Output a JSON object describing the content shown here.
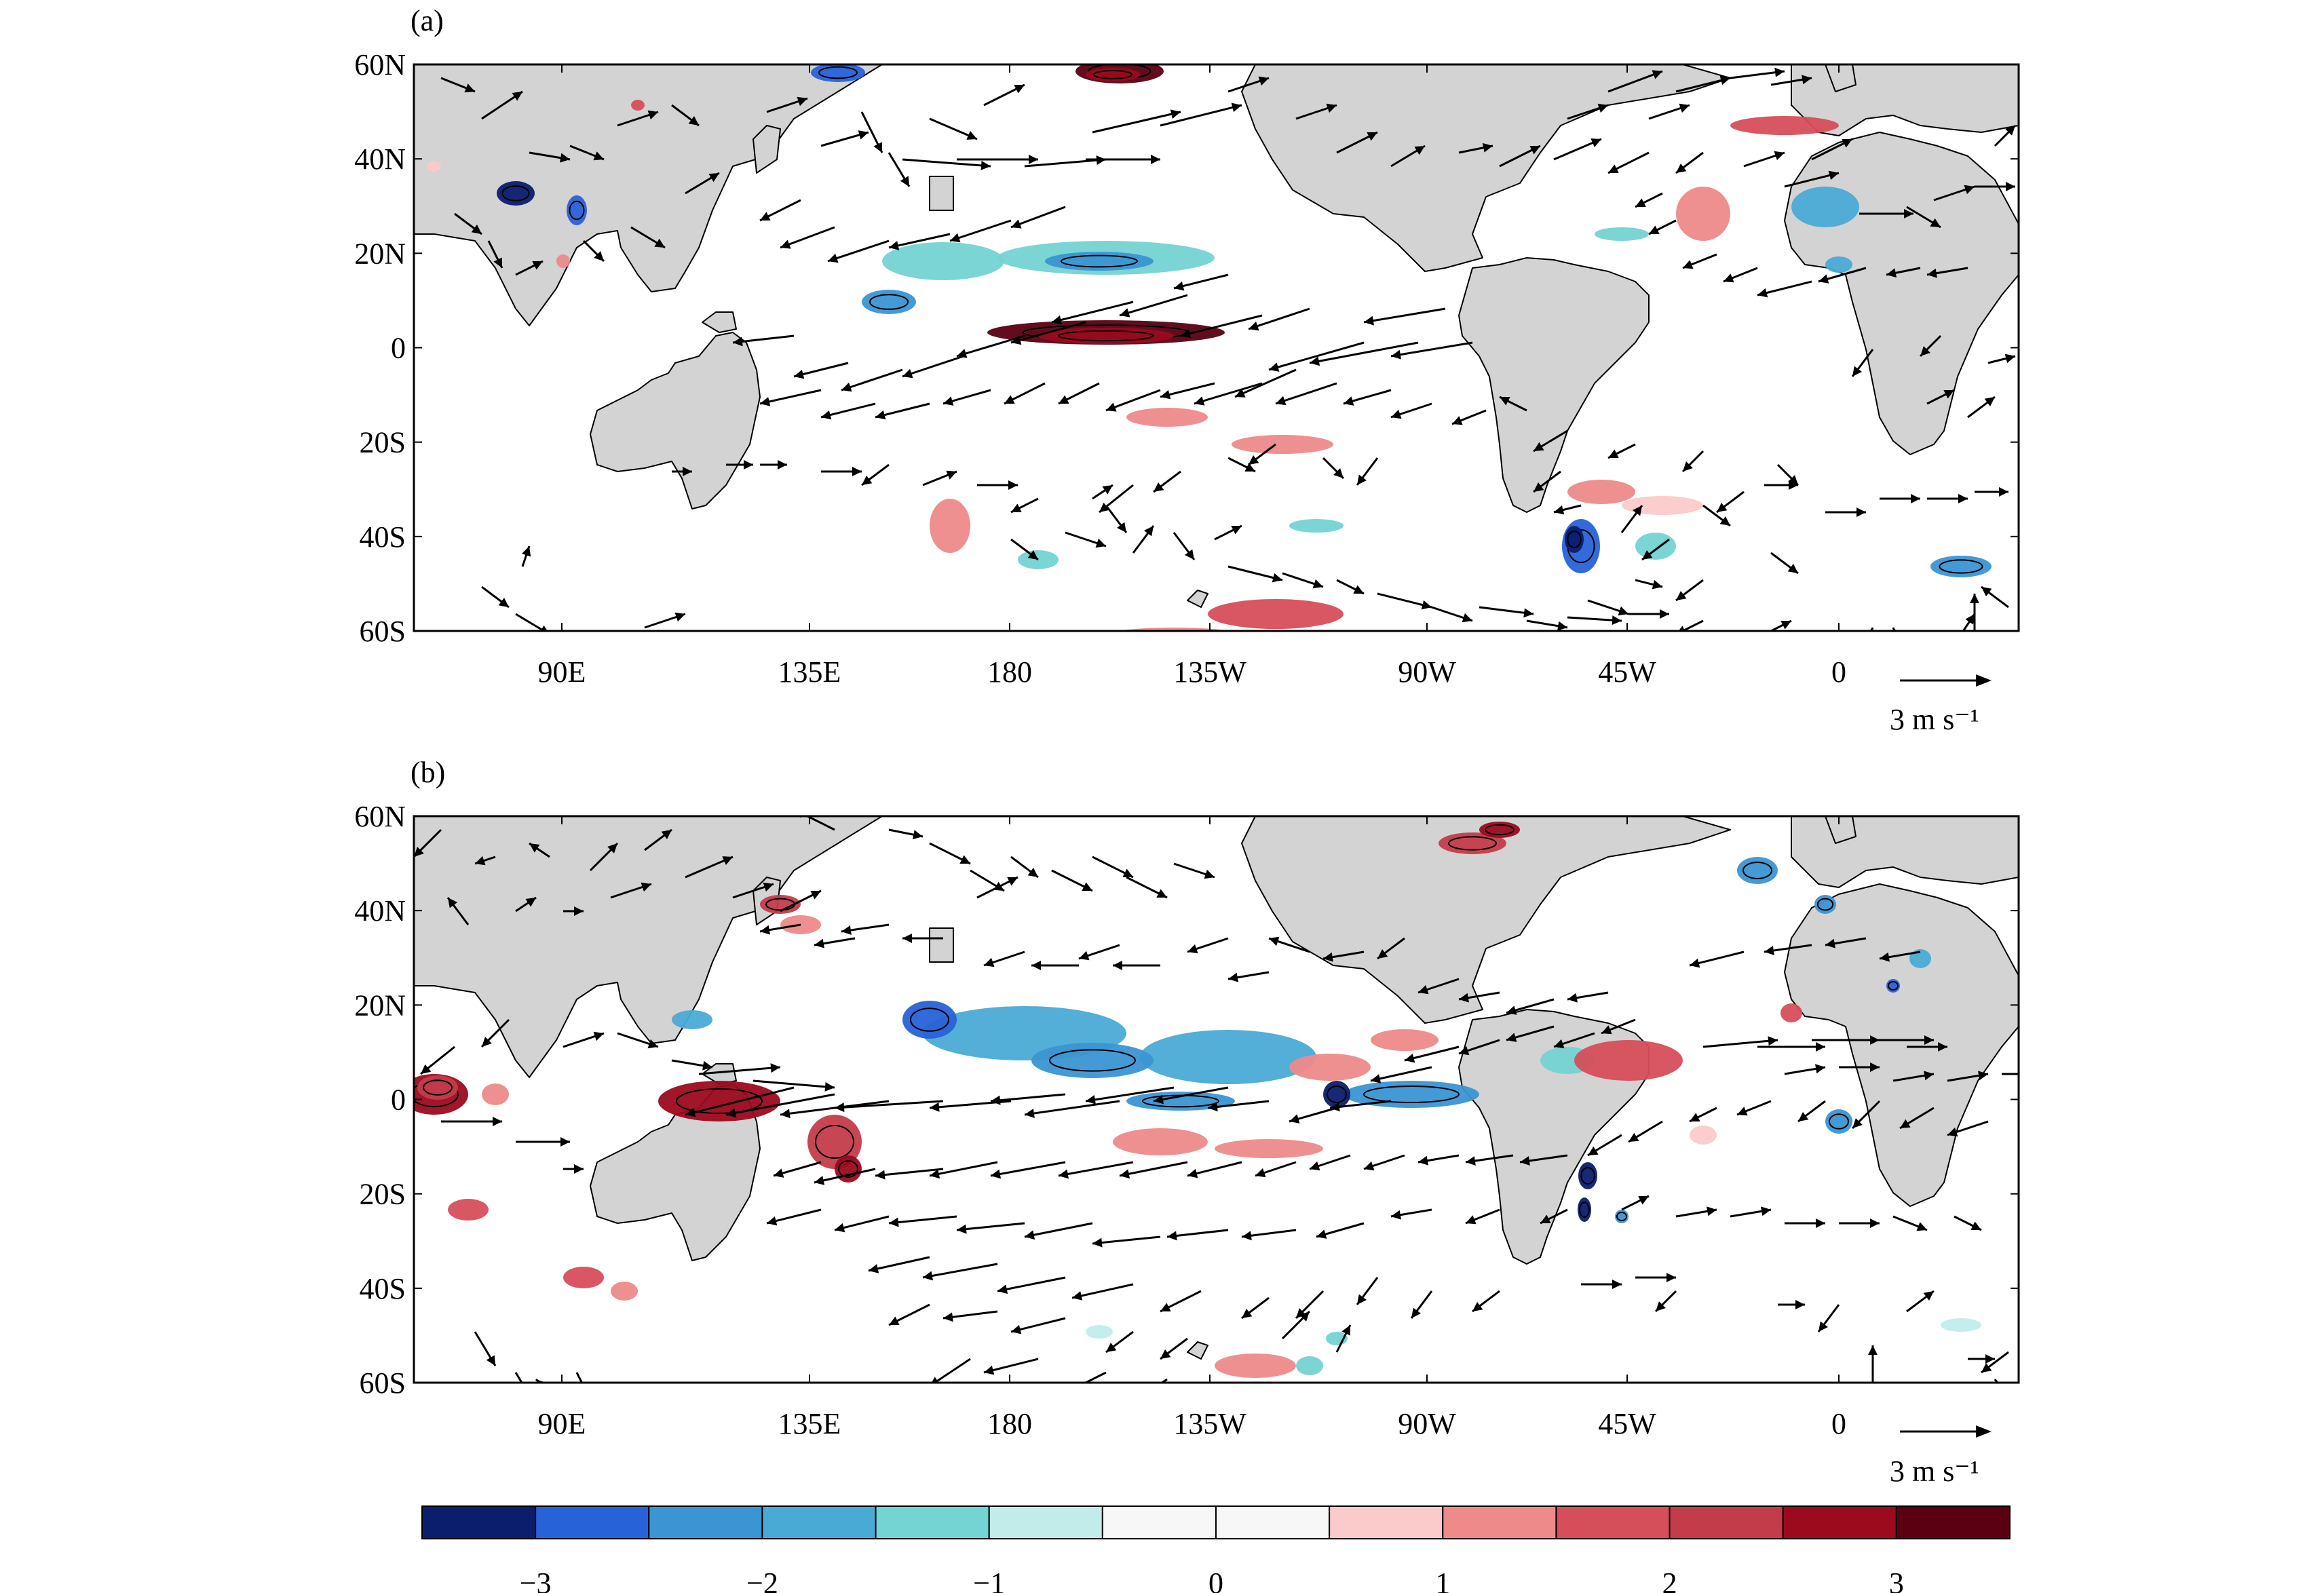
{
  "panels": [
    {
      "id": "a",
      "label": "(a)",
      "lat_ticks": [
        "60N",
        "40N",
        "20N",
        "0",
        "20S",
        "40S",
        "60S"
      ],
      "lon_ticks": [
        "90E",
        "135E",
        "180",
        "135W",
        "90W",
        "45W",
        "0"
      ],
      "vector_reference_label": "3 m s⁻¹"
    },
    {
      "id": "b",
      "label": "(b)",
      "lat_ticks": [
        "60N",
        "40N",
        "20N",
        "0",
        "20S",
        "40S",
        "60S"
      ],
      "lon_ticks": [
        "90E",
        "135E",
        "180",
        "135W",
        "90W",
        "45W",
        "0"
      ],
      "vector_reference_label": "3 m s⁻¹"
    }
  ],
  "colorbar": {
    "tick_labels": [
      "−3",
      "−2",
      "−1",
      "0",
      "1",
      "2",
      "3"
    ],
    "colors": [
      "#0b1e6e",
      "#2862d8",
      "#3a95d2",
      "#4aaad6",
      "#74d3d3",
      "#c2ecea",
      "#f7f7f7",
      "#f7f7f7",
      "#fbcaca",
      "#ee8a8a",
      "#d64e5a",
      "#c43c4a",
      "#9c0a1e",
      "#5a0012"
    ]
  },
  "colors": {
    "land": "#d3d3d3",
    "ocean": "#ffffff",
    "outline": "#000000"
  }
}
